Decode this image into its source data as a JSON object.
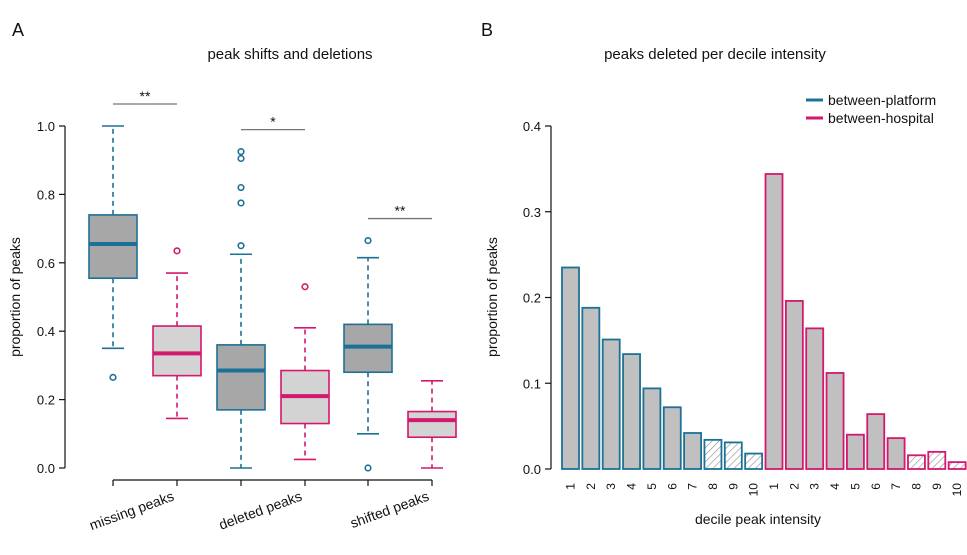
{
  "panels": {
    "a": {
      "letter": "A",
      "title": "peak shifts and deletions"
    },
    "b": {
      "letter": "B",
      "title": "peaks deleted per decile intensity"
    }
  },
  "colors": {
    "platform": "#1c7196",
    "hospital": "#d4176f",
    "platform_fill": "#a7a7a7",
    "hospital_fill": "#d3d3d3",
    "bar_fill": "#c0c0c0",
    "axis": "#111111",
    "sig_line": "#777777"
  },
  "chart_data": [
    {
      "type": "box",
      "title": "peak shifts and deletions",
      "ylabel": "proportion of peaks",
      "xlabel": "",
      "ylim": [
        0,
        1.0
      ],
      "yticks": [
        "0.0",
        "0.2",
        "0.4",
        "0.6",
        "0.8",
        "1.0"
      ],
      "groups": [
        {
          "label": "missing peaks",
          "significance": "**",
          "boxes": [
            {
              "series": "between-platform",
              "whisker_low": 0.35,
              "q1": 0.555,
              "median": 0.655,
              "q3": 0.74,
              "whisker_high": 1.0,
              "outliers": [
                0.265
              ]
            },
            {
              "series": "between-hospital",
              "whisker_low": 0.145,
              "q1": 0.27,
              "median": 0.335,
              "q3": 0.415,
              "whisker_high": 0.57,
              "outliers": [
                0.635
              ]
            }
          ]
        },
        {
          "label": "deleted peaks",
          "significance": "*",
          "boxes": [
            {
              "series": "between-platform",
              "whisker_low": 0.0,
              "q1": 0.17,
              "median": 0.285,
              "q3": 0.36,
              "whisker_high": 0.625,
              "outliers": [
                0.65,
                0.775,
                0.82,
                0.905,
                0.925
              ]
            },
            {
              "series": "between-hospital",
              "whisker_low": 0.025,
              "q1": 0.13,
              "median": 0.21,
              "q3": 0.285,
              "whisker_high": 0.41,
              "outliers": [
                0.53
              ]
            }
          ]
        },
        {
          "label": "shifted peaks",
          "significance": "**",
          "boxes": [
            {
              "series": "between-platform",
              "whisker_low": 0.1,
              "q1": 0.28,
              "median": 0.355,
              "q3": 0.42,
              "whisker_high": 0.615,
              "outliers": [
                0.0,
                0.665
              ]
            },
            {
              "series": "between-hospital",
              "whisker_low": 0.0,
              "q1": 0.09,
              "median": 0.14,
              "q3": 0.165,
              "whisker_high": 0.255,
              "outliers": []
            }
          ]
        }
      ]
    },
    {
      "type": "bar",
      "title": "peaks deleted per decile intensity",
      "xlabel": "decile peak intensity",
      "ylabel": "proportion of peaks",
      "ylim": [
        0,
        0.4
      ],
      "yticks": [
        "0.0",
        "0.1",
        "0.2",
        "0.3",
        "0.4"
      ],
      "categories": [
        "1",
        "2",
        "3",
        "4",
        "5",
        "6",
        "7",
        "8",
        "9",
        "10"
      ],
      "legend_position": "top-right",
      "series": [
        {
          "name": "between-platform",
          "values": [
            0.235,
            0.188,
            0.151,
            0.134,
            0.094,
            0.072,
            0.042,
            0.034,
            0.031,
            0.018
          ],
          "hatched": [
            false,
            false,
            false,
            false,
            false,
            false,
            false,
            true,
            true,
            true
          ]
        },
        {
          "name": "between-hospital",
          "values": [
            0.344,
            0.196,
            0.164,
            0.112,
            0.04,
            0.064,
            0.036,
            0.016,
            0.02,
            0.008
          ],
          "hatched": [
            false,
            false,
            false,
            false,
            false,
            false,
            false,
            true,
            true,
            true
          ]
        }
      ]
    }
  ]
}
